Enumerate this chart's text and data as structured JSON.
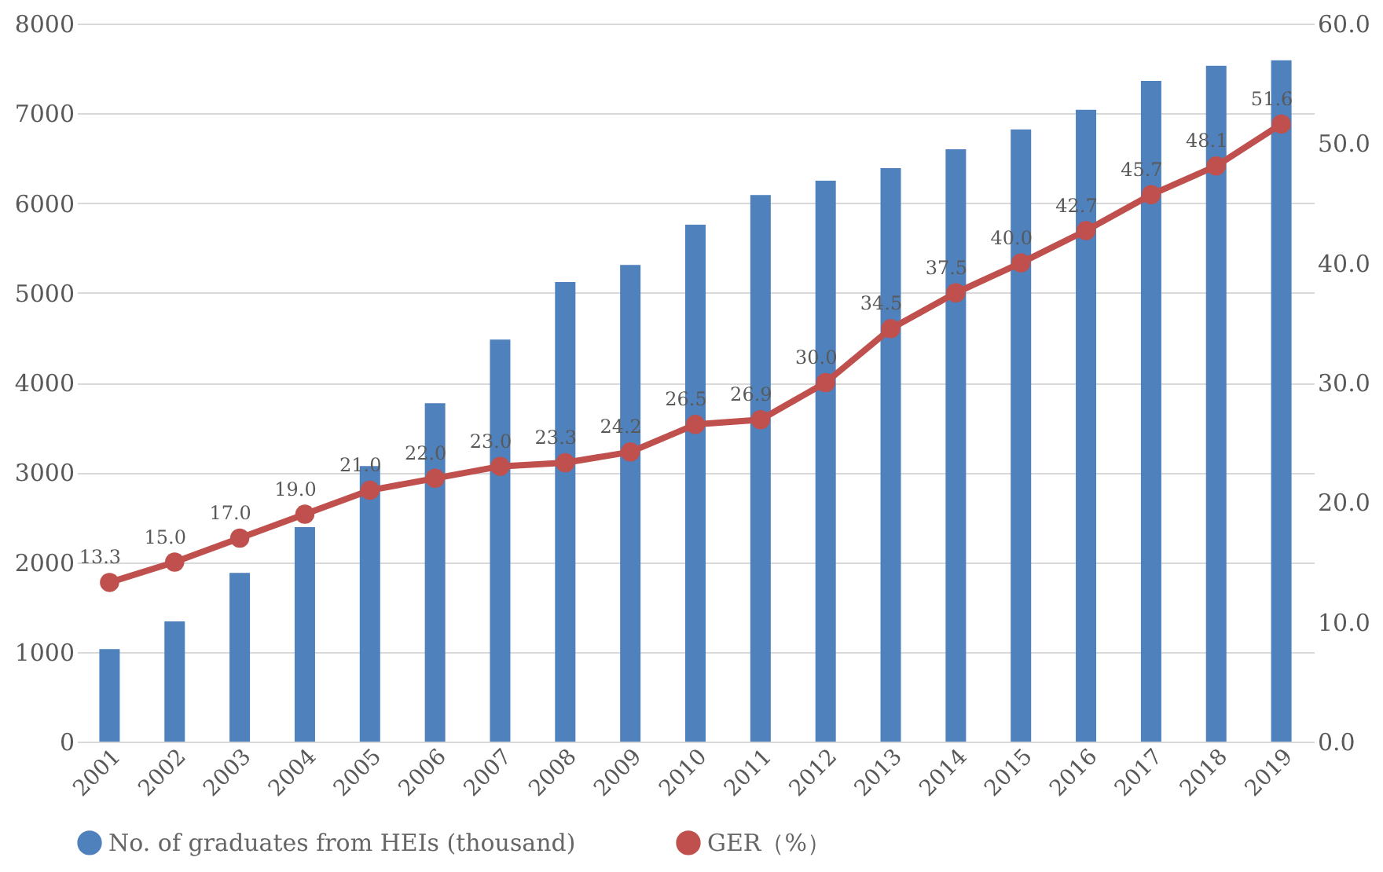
{
  "chart_data": {
    "type": "bar",
    "categories": [
      "2001",
      "2002",
      "2003",
      "2004",
      "2005",
      "2006",
      "2007",
      "2008",
      "2009",
      "2010",
      "2011",
      "2012",
      "2013",
      "2014",
      "2015",
      "2016",
      "2017",
      "2018",
      "2019"
    ],
    "series": [
      {
        "name": "No. of graduates from HEIs (thousand)",
        "color": "#4f81bd",
        "values": [
          1030,
          1340,
          1880,
          2390,
          3070,
          3770,
          4480,
          5120,
          5310,
          5760,
          6090,
          6250,
          6390,
          6600,
          6820,
          7040,
          7360,
          7530,
          7590
        ]
      },
      {
        "name": "GER（%）",
        "color": "#c0504d",
        "type": "line",
        "axis": "y2",
        "marker": "circle",
        "values": [
          13.3,
          15.0,
          17.0,
          19.0,
          21.0,
          22.0,
          23.0,
          23.3,
          24.2,
          26.5,
          26.9,
          30.0,
          34.5,
          37.5,
          40.0,
          42.7,
          45.7,
          48.1,
          51.6
        ],
        "value_labels": [
          "13.3",
          "15.0",
          "17.0",
          "19.0",
          "21.0",
          "22.0",
          "23.0",
          "23.3",
          "24.2",
          "26.5",
          "26.9",
          "30.0",
          "34.5",
          "37.5",
          "40.0",
          "42.7",
          "45.7",
          "48.1",
          "51.6"
        ]
      }
    ],
    "ylim": [
      0,
      8000
    ],
    "yticks": [
      0,
      1000,
      2000,
      3000,
      4000,
      5000,
      6000,
      7000,
      8000
    ],
    "y2lim": [
      0,
      60
    ],
    "y2ticks": [
      {
        "value": 0,
        "label": "0.0"
      },
      {
        "value": 10,
        "label": "10.0"
      },
      {
        "value": 20,
        "label": "20.0"
      },
      {
        "value": 30,
        "label": "30.0"
      },
      {
        "value": 40,
        "label": "40.0"
      },
      {
        "value": 50,
        "label": "50.0"
      },
      {
        "value": 60,
        "label": "60.0"
      }
    ],
    "grid": "y",
    "legend": "bottom"
  }
}
